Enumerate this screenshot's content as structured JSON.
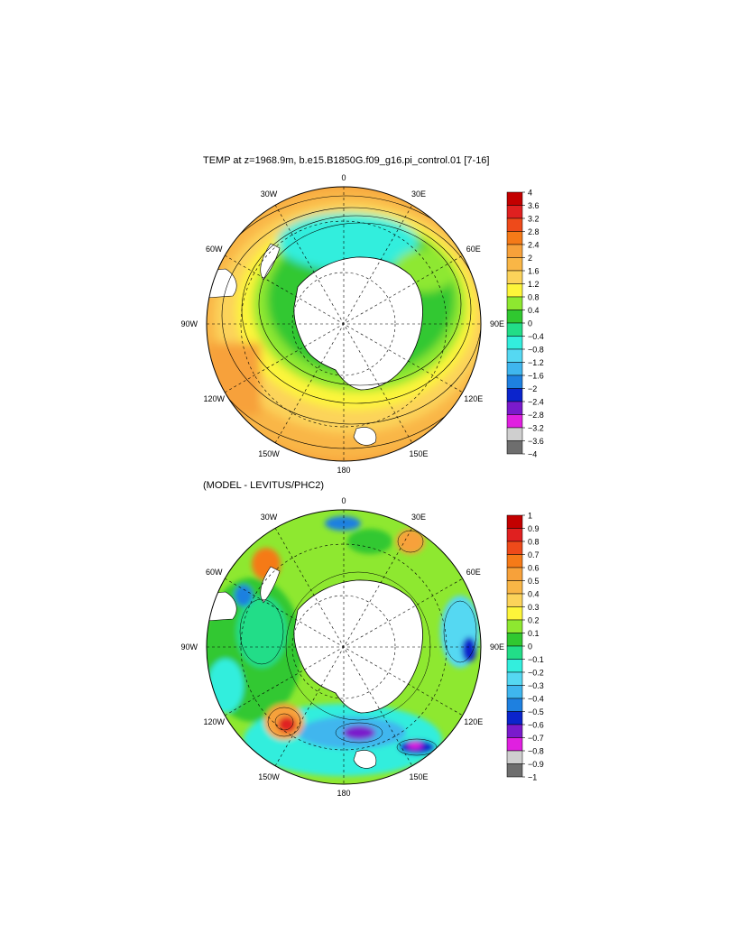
{
  "chart_data": [
    {
      "type": "heatmap",
      "projection": "south-polar-stereographic",
      "title": "TEMP at z=1968.9m, b.e15.B1850G.f09_g16.pi_control.01 [7-16]",
      "longitude_labels": [
        "0",
        "30E",
        "60E",
        "90E",
        "120E",
        "150E",
        "180",
        "150W",
        "120W",
        "90W",
        "60W",
        "30W"
      ],
      "colorbar_ticks": [
        "4",
        "3.6",
        "3.2",
        "2.8",
        "2.4",
        "2",
        "1.6",
        "1.2",
        "0.8",
        "0.4",
        "0",
        "−0.4",
        "−0.8",
        "−1.2",
        "−1.6",
        "−2",
        "−2.4",
        "−2.8",
        "−3.2",
        "−3.6",
        "−4"
      ],
      "colorbar_colors": [
        "#c30000",
        "#e02020",
        "#ee4a1a",
        "#f57a18",
        "#f7a13a",
        "#f9b646",
        "#fcd35a",
        "#fdf53a",
        "#8ee830",
        "#30c830",
        "#22dd88",
        "#33eedd",
        "#55d8f2",
        "#3fb6ee",
        "#1e80e0",
        "#0b24cc",
        "#7a1acc",
        "#e020e0",
        "#cfcfcf",
        "#6e6e6e"
      ],
      "land_color": "#ffffff",
      "grid": true
    },
    {
      "type": "heatmap",
      "projection": "south-polar-stereographic",
      "title": "(MODEL - LEVITUS/PHC2)",
      "longitude_labels": [
        "0",
        "30E",
        "60E",
        "90E",
        "120E",
        "150E",
        "180",
        "150W",
        "120W",
        "90W",
        "60W",
        "30W"
      ],
      "colorbar_ticks": [
        "1",
        "0.9",
        "0.8",
        "0.7",
        "0.6",
        "0.5",
        "0.4",
        "0.3",
        "0.2",
        "0.1",
        "0",
        "−0.1",
        "−0.2",
        "−0.3",
        "−0.4",
        "−0.5",
        "−0.6",
        "−0.7",
        "−0.8",
        "−0.9",
        "−1"
      ],
      "colorbar_colors": [
        "#c30000",
        "#e02020",
        "#ee4a1a",
        "#f57a18",
        "#f7a13a",
        "#f9b646",
        "#fcd35a",
        "#fdf53a",
        "#8ee830",
        "#30c830",
        "#22dd88",
        "#33eedd",
        "#55d8f2",
        "#3fb6ee",
        "#1e80e0",
        "#0b24cc",
        "#7a1acc",
        "#e020e0",
        "#cfcfcf",
        "#6e6e6e"
      ],
      "land_color": "#ffffff",
      "grid": true
    }
  ]
}
